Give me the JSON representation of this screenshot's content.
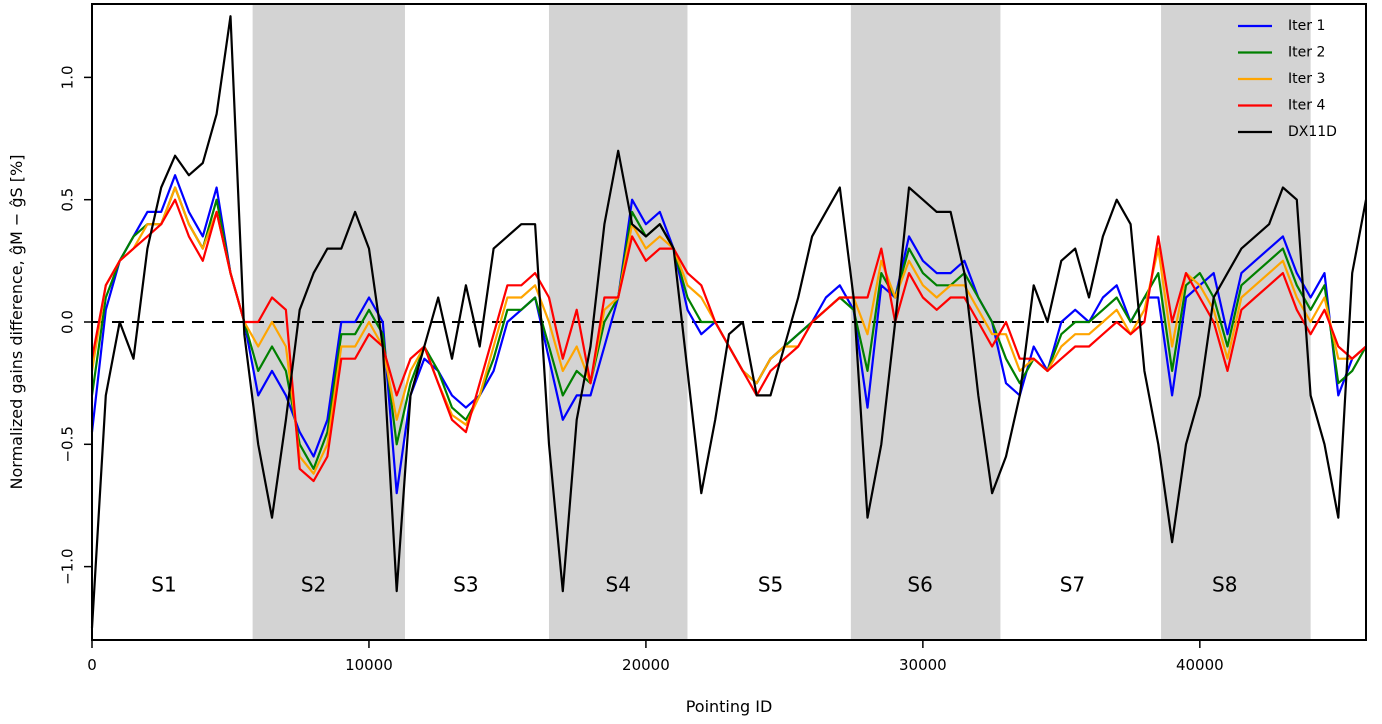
{
  "chart_data": {
    "type": "line",
    "xlabel": "Pointing ID",
    "ylabel": "Normalized gains difference, ĝM − ĝS [%]",
    "xlim": [
      0,
      46000
    ],
    "ylim": [
      -1.3,
      1.3
    ],
    "xticks": [
      0,
      10000,
      20000,
      30000,
      40000
    ],
    "xtick_labels": [
      "0",
      "10000",
      "20000",
      "30000",
      "40000"
    ],
    "yticks": [
      -1.0,
      -0.5,
      0.0,
      0.5,
      1.0
    ],
    "ytick_labels": [
      "−1.0",
      "−0.5",
      "0.0",
      "0.5",
      "1.0"
    ],
    "grid": false,
    "legend_position": "top-right",
    "reference_line": {
      "y": 0.0,
      "style": "dashed"
    },
    "shaded_regions": [
      {
        "x": [
          5800,
          11300
        ],
        "color": "#d3d3d3"
      },
      {
        "x": [
          16500,
          21500
        ],
        "color": "#d3d3d3"
      },
      {
        "x": [
          27400,
          32800
        ],
        "color": "#d3d3d3"
      },
      {
        "x": [
          38600,
          44000
        ],
        "color": "#d3d3d3"
      }
    ],
    "annotations": [
      {
        "text": "S1",
        "x": 2600,
        "y": -1.08
      },
      {
        "text": "S2",
        "x": 8000,
        "y": -1.08
      },
      {
        "text": "S3",
        "x": 13500,
        "y": -1.08
      },
      {
        "text": "S4",
        "x": 19000,
        "y": -1.08
      },
      {
        "text": "S5",
        "x": 24500,
        "y": -1.08
      },
      {
        "text": "S6",
        "x": 29900,
        "y": -1.08
      },
      {
        "text": "S7",
        "x": 35400,
        "y": -1.08
      },
      {
        "text": "S8",
        "x": 40900,
        "y": -1.08
      }
    ],
    "x": [
      0,
      500,
      1000,
      1500,
      2000,
      2500,
      3000,
      3500,
      4000,
      4500,
      5000,
      5500,
      6000,
      6500,
      7000,
      7500,
      8000,
      8500,
      9000,
      9500,
      10000,
      10500,
      11000,
      11500,
      12000,
      12500,
      13000,
      13500,
      14000,
      14500,
      15000,
      15500,
      16000,
      16500,
      17000,
      17500,
      18000,
      18500,
      19000,
      19500,
      20000,
      20500,
      21000,
      21500,
      22000,
      22500,
      23000,
      23500,
      24000,
      24500,
      25000,
      25500,
      26000,
      26500,
      27000,
      27500,
      28000,
      28500,
      29000,
      29500,
      30000,
      30500,
      31000,
      31500,
      32000,
      32500,
      33000,
      33500,
      34000,
      34500,
      35000,
      35500,
      36000,
      36500,
      37000,
      37500,
      38000,
      38500,
      39000,
      39500,
      40000,
      40500,
      41000,
      41500,
      42000,
      42500,
      43000,
      43500,
      44000,
      44500,
      45000,
      45500,
      46000
    ],
    "series": [
      {
        "name": "Iter 1",
        "color": "#0000ff",
        "values": [
          -0.45,
          0.05,
          0.25,
          0.35,
          0.45,
          0.45,
          0.6,
          0.45,
          0.35,
          0.55,
          0.2,
          0.0,
          -0.3,
          -0.2,
          -0.3,
          -0.45,
          -0.55,
          -0.4,
          0.0,
          0.0,
          0.1,
          0.0,
          -0.7,
          -0.3,
          -0.15,
          -0.2,
          -0.3,
          -0.35,
          -0.3,
          -0.2,
          0.0,
          0.05,
          0.1,
          -0.15,
          -0.4,
          -0.3,
          -0.3,
          -0.1,
          0.1,
          0.5,
          0.4,
          0.45,
          0.3,
          0.05,
          -0.05,
          0.0,
          -0.1,
          -0.2,
          -0.25,
          -0.15,
          -0.1,
          -0.05,
          0.0,
          0.1,
          0.15,
          0.05,
          -0.35,
          0.15,
          0.1,
          0.35,
          0.25,
          0.2,
          0.2,
          0.25,
          0.1,
          0.0,
          -0.25,
          -0.3,
          -0.1,
          -0.2,
          0.0,
          0.05,
          0.0,
          0.1,
          0.15,
          0.0,
          0.1,
          0.1,
          -0.3,
          0.1,
          0.15,
          0.2,
          -0.05,
          0.2,
          0.25,
          0.3,
          0.35,
          0.2,
          0.1,
          0.2,
          -0.3,
          -0.15,
          -0.1
        ]
      },
      {
        "name": "Iter 2",
        "color": "#008000",
        "values": [
          -0.3,
          0.1,
          0.25,
          0.35,
          0.4,
          0.4,
          0.55,
          0.4,
          0.3,
          0.5,
          0.2,
          0.0,
          -0.2,
          -0.1,
          -0.2,
          -0.5,
          -0.6,
          -0.45,
          -0.05,
          -0.05,
          0.05,
          -0.05,
          -0.5,
          -0.25,
          -0.1,
          -0.2,
          -0.35,
          -0.4,
          -0.3,
          -0.15,
          0.05,
          0.05,
          0.1,
          -0.1,
          -0.3,
          -0.2,
          -0.25,
          0.0,
          0.1,
          0.45,
          0.35,
          0.4,
          0.3,
          0.1,
          0.0,
          0.0,
          -0.1,
          -0.2,
          -0.25,
          -0.15,
          -0.1,
          -0.05,
          0.0,
          0.05,
          0.1,
          0.05,
          -0.2,
          0.2,
          0.1,
          0.3,
          0.2,
          0.15,
          0.15,
          0.2,
          0.1,
          0.0,
          -0.15,
          -0.25,
          -0.15,
          -0.2,
          -0.05,
          0.0,
          0.0,
          0.05,
          0.1,
          0.0,
          0.1,
          0.2,
          -0.2,
          0.15,
          0.2,
          0.1,
          -0.1,
          0.15,
          0.2,
          0.25,
          0.3,
          0.15,
          0.05,
          0.15,
          -0.25,
          -0.2,
          -0.1
        ]
      },
      {
        "name": "Iter 3",
        "color": "#ffa500",
        "values": [
          -0.2,
          0.15,
          0.25,
          0.3,
          0.4,
          0.4,
          0.55,
          0.4,
          0.3,
          0.45,
          0.2,
          0.0,
          -0.1,
          0.0,
          -0.1,
          -0.55,
          -0.62,
          -0.5,
          -0.1,
          -0.1,
          0.0,
          -0.1,
          -0.4,
          -0.2,
          -0.1,
          -0.25,
          -0.38,
          -0.42,
          -0.3,
          -0.1,
          0.1,
          0.1,
          0.15,
          0.0,
          -0.2,
          -0.1,
          -0.25,
          0.05,
          0.1,
          0.4,
          0.3,
          0.35,
          0.3,
          0.15,
          0.1,
          0.0,
          -0.1,
          -0.2,
          -0.25,
          -0.15,
          -0.1,
          -0.1,
          0.0,
          0.05,
          0.1,
          0.1,
          -0.05,
          0.25,
          0.1,
          0.25,
          0.15,
          0.1,
          0.15,
          0.15,
          0.05,
          -0.05,
          -0.05,
          -0.2,
          -0.15,
          -0.2,
          -0.1,
          -0.05,
          -0.05,
          0.0,
          0.05,
          -0.05,
          0.05,
          0.3,
          -0.1,
          0.2,
          0.15,
          0.05,
          -0.15,
          0.1,
          0.15,
          0.2,
          0.25,
          0.1,
          0.0,
          0.1,
          -0.15,
          -0.15,
          -0.1
        ]
      },
      {
        "name": "Iter 4",
        "color": "#ff0000",
        "values": [
          -0.15,
          0.15,
          0.25,
          0.3,
          0.35,
          0.4,
          0.5,
          0.35,
          0.25,
          0.45,
          0.2,
          0.0,
          0.0,
          0.1,
          0.05,
          -0.6,
          -0.65,
          -0.55,
          -0.15,
          -0.15,
          -0.05,
          -0.1,
          -0.3,
          -0.15,
          -0.1,
          -0.25,
          -0.4,
          -0.45,
          -0.25,
          -0.05,
          0.15,
          0.15,
          0.2,
          0.1,
          -0.15,
          0.05,
          -0.25,
          0.1,
          0.1,
          0.35,
          0.25,
          0.3,
          0.3,
          0.2,
          0.15,
          0.0,
          -0.1,
          -0.2,
          -0.3,
          -0.2,
          -0.15,
          -0.1,
          0.0,
          0.05,
          0.1,
          0.1,
          0.1,
          0.3,
          0.0,
          0.2,
          0.1,
          0.05,
          0.1,
          0.1,
          0.0,
          -0.1,
          0.0,
          -0.15,
          -0.15,
          -0.2,
          -0.15,
          -0.1,
          -0.1,
          -0.05,
          0.0,
          -0.05,
          0.0,
          0.35,
          0.0,
          0.2,
          0.1,
          0.0,
          -0.2,
          0.05,
          0.1,
          0.15,
          0.2,
          0.05,
          -0.05,
          0.05,
          -0.1,
          -0.15,
          -0.1
        ]
      },
      {
        "name": "DX11D",
        "color": "#000000",
        "values": [
          -1.25,
          -0.3,
          0.0,
          -0.15,
          0.3,
          0.55,
          0.68,
          0.6,
          0.65,
          0.85,
          1.25,
          -0.05,
          -0.5,
          -0.8,
          -0.4,
          0.05,
          0.2,
          0.3,
          0.3,
          0.45,
          0.3,
          -0.1,
          -1.1,
          -0.3,
          -0.1,
          0.1,
          -0.15,
          0.15,
          -0.1,
          0.3,
          0.35,
          0.4,
          0.4,
          -0.5,
          -1.1,
          -0.4,
          -0.1,
          0.4,
          0.7,
          0.4,
          0.35,
          0.4,
          0.3,
          -0.2,
          -0.7,
          -0.4,
          -0.05,
          0.0,
          -0.3,
          -0.3,
          -0.1,
          0.1,
          0.35,
          0.45,
          0.55,
          0.1,
          -0.8,
          -0.5,
          0.0,
          0.55,
          0.5,
          0.45,
          0.45,
          0.2,
          -0.3,
          -0.7,
          -0.55,
          -0.3,
          0.15,
          0.0,
          0.25,
          0.3,
          0.1,
          0.35,
          0.5,
          0.4,
          -0.2,
          -0.5,
          -0.9,
          -0.5,
          -0.3,
          0.1,
          0.2,
          0.3,
          0.35,
          0.4,
          0.55,
          0.5,
          -0.3,
          -0.5,
          -0.8,
          0.2,
          0.5
        ]
      }
    ]
  }
}
